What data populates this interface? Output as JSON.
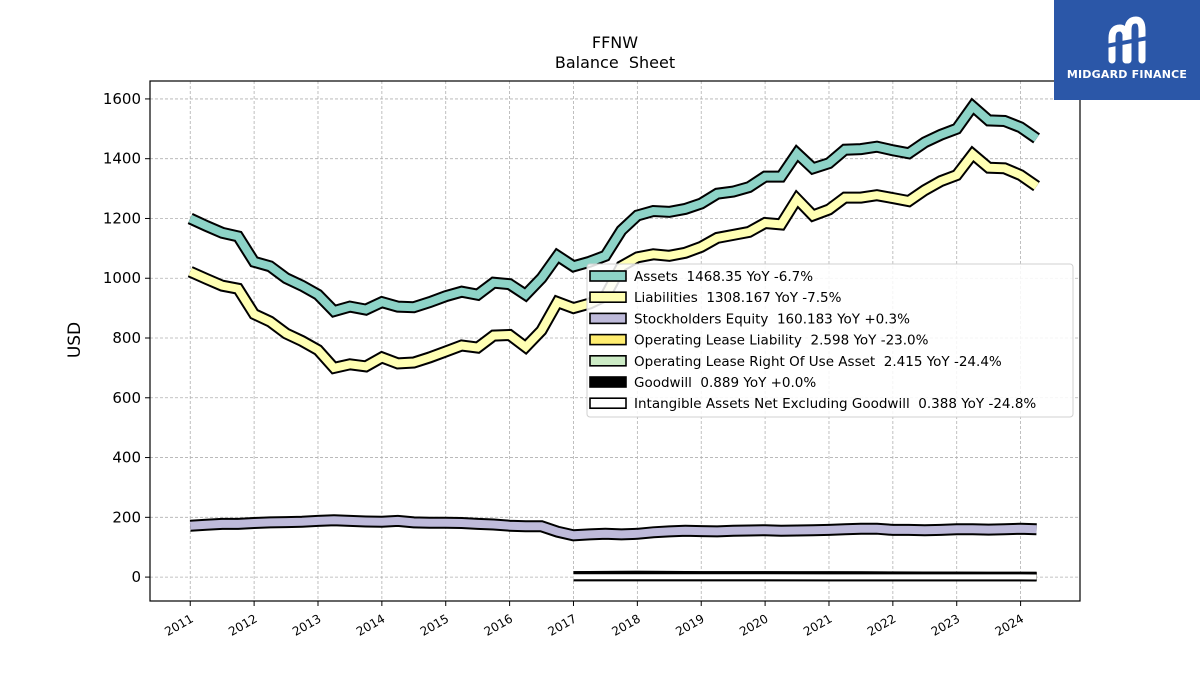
{
  "chart_data": {
    "type": "line",
    "title": "FFNW",
    "subtitle": "Balance  Sheet",
    "xlabel": "",
    "ylabel": "USD",
    "xlim": [
      2010.37,
      2024.93
    ],
    "ylim": [
      -80,
      1660
    ],
    "x_ticks": [
      "2011",
      "2012",
      "2013",
      "2014",
      "2015",
      "2016",
      "2017",
      "2018",
      "2019",
      "2020",
      "2021",
      "2022",
      "2023",
      "2024"
    ],
    "y_ticks": [
      0,
      200,
      400,
      600,
      800,
      1000,
      1200,
      1400,
      1600
    ],
    "grid": true,
    "legend_position": "center-right",
    "series": [
      {
        "name": "Assets",
        "legend": "Assets  1468.35 YoY -6.7%",
        "color": "#8dd3c7",
        "x": [
          2011.0,
          2011.25,
          2011.5,
          2011.75,
          2012.0,
          2012.25,
          2012.5,
          2012.75,
          2013.0,
          2013.25,
          2013.5,
          2013.75,
          2014.0,
          2014.25,
          2014.5,
          2014.75,
          2015.0,
          2015.25,
          2015.5,
          2015.75,
          2016.0,
          2016.25,
          2016.5,
          2016.75,
          2017.0,
          2017.25,
          2017.5,
          2017.75,
          2018.0,
          2018.25,
          2018.5,
          2018.75,
          2019.0,
          2019.25,
          2019.5,
          2019.75,
          2020.0,
          2020.25,
          2020.5,
          2020.75,
          2021.0,
          2021.25,
          2021.5,
          2021.75,
          2022.0,
          2022.25,
          2022.5,
          2022.75,
          2023.0,
          2023.25,
          2023.5,
          2023.75,
          2024.0,
          2024.25
        ],
        "values": [
          1200,
          1175,
          1152,
          1140,
          1055,
          1040,
          1000,
          975,
          945,
          890,
          905,
          895,
          920,
          905,
          903,
          920,
          940,
          955,
          945,
          985,
          980,
          945,
          1000,
          1075,
          1040,
          1055,
          1075,
          1160,
          1210,
          1225,
          1222,
          1232,
          1250,
          1283,
          1290,
          1305,
          1340,
          1340,
          1418,
          1368,
          1385,
          1430,
          1432,
          1440,
          1428,
          1418,
          1455,
          1480,
          1500,
          1575,
          1528,
          1526,
          1505,
          1468
        ]
      },
      {
        "name": "Liabilities",
        "legend": "Liabilities  1308.167 YoY -7.5%",
        "color": "#ffffb3",
        "x": [
          2011.0,
          2011.25,
          2011.5,
          2011.75,
          2012.0,
          2012.25,
          2012.5,
          2012.75,
          2013.0,
          2013.25,
          2013.5,
          2013.75,
          2014.0,
          2014.25,
          2014.5,
          2014.75,
          2015.0,
          2015.25,
          2015.5,
          2015.75,
          2016.0,
          2016.25,
          2016.5,
          2016.75,
          2017.0,
          2017.25,
          2017.5,
          2017.75,
          2018.0,
          2018.25,
          2018.5,
          2018.75,
          2019.0,
          2019.25,
          2019.5,
          2019.75,
          2020.0,
          2020.25,
          2020.5,
          2020.75,
          2021.0,
          2021.25,
          2021.5,
          2021.75,
          2022.0,
          2022.25,
          2022.5,
          2022.75,
          2023.0,
          2023.25,
          2023.5,
          2023.75,
          2024.0,
          2024.25
        ],
        "values": [
          1022,
          998,
          975,
          965,
          880,
          855,
          815,
          790,
          760,
          700,
          712,
          705,
          735,
          715,
          718,
          735,
          755,
          775,
          768,
          808,
          810,
          770,
          825,
          920,
          900,
          915,
          940,
          1040,
          1070,
          1080,
          1075,
          1085,
          1105,
          1135,
          1145,
          1155,
          1185,
          1180,
          1265,
          1210,
          1230,
          1270,
          1270,
          1278,
          1268,
          1258,
          1295,
          1325,
          1345,
          1415,
          1370,
          1368,
          1345,
          1308
        ]
      },
      {
        "name": "Stockholders Equity",
        "legend": "Stockholders Equity  160.183 YoY +0.3%",
        "color": "#bebada",
        "x": [
          2011.0,
          2011.25,
          2011.5,
          2011.75,
          2012.0,
          2012.25,
          2012.5,
          2012.75,
          2013.0,
          2013.25,
          2013.5,
          2013.75,
          2014.0,
          2014.25,
          2014.5,
          2014.75,
          2015.0,
          2015.25,
          2015.5,
          2015.75,
          2016.0,
          2016.25,
          2016.5,
          2016.75,
          2017.0,
          2017.25,
          2017.5,
          2017.75,
          2018.0,
          2018.25,
          2018.5,
          2018.75,
          2019.0,
          2019.25,
          2019.5,
          2019.75,
          2020.0,
          2020.25,
          2020.5,
          2020.75,
          2021.0,
          2021.25,
          2021.5,
          2021.75,
          2022.0,
          2022.25,
          2022.5,
          2022.75,
          2023.0,
          2023.25,
          2023.5,
          2023.75,
          2024.0,
          2024.25
        ],
        "values": [
          172,
          175,
          178,
          178,
          181,
          183,
          184,
          185,
          188,
          190,
          188,
          186,
          185,
          188,
          183,
          182,
          182,
          181,
          178,
          176,
          172,
          170,
          170,
          152,
          140,
          143,
          145,
          143,
          145,
          150,
          153,
          155,
          154,
          153,
          155,
          156,
          157,
          155,
          156,
          157,
          158,
          160,
          162,
          162,
          158,
          158,
          157,
          158,
          160,
          160,
          159,
          160,
          162,
          160
        ]
      },
      {
        "name": "Operating Lease Liability",
        "legend": "Operating Lease Liability  2.598 YoY -23.0%",
        "color": "#ffed6f",
        "x": [
          2017.0,
          2017.5,
          2018.0,
          2018.5,
          2019.0,
          2019.5,
          2020.0,
          2020.5,
          2021.0,
          2021.5,
          2022.0,
          2022.5,
          2023.0,
          2023.5,
          2024.0,
          2024.25
        ],
        "values": [
          5,
          5.5,
          6,
          5.5,
          5,
          5,
          5,
          4.8,
          4.5,
          4.2,
          4,
          3.7,
          3.4,
          3.1,
          2.8,
          2.6
        ]
      },
      {
        "name": "Operating Lease Right Of Use Asset",
        "legend": "Operating Lease Right Of Use Asset  2.415 YoY -24.4%",
        "color": "#ccebc5",
        "x": [
          2017.0,
          2017.5,
          2018.0,
          2018.5,
          2019.0,
          2019.5,
          2020.0,
          2020.5,
          2021.0,
          2021.5,
          2022.0,
          2022.5,
          2023.0,
          2023.5,
          2024.0,
          2024.25
        ],
        "values": [
          4.8,
          5.2,
          5.6,
          5.2,
          4.8,
          4.8,
          4.7,
          4.5,
          4.2,
          3.9,
          3.7,
          3.4,
          3.2,
          2.9,
          2.6,
          2.4
        ]
      },
      {
        "name": "Goodwill",
        "legend": "Goodwill  0.889 YoY +0.0%",
        "color": "#000000",
        "x": [
          2017.0,
          2024.25
        ],
        "values": [
          0.889,
          0.889
        ]
      },
      {
        "name": "Intangible Assets Net Excluding Goodwill",
        "legend": "Intangible Assets Net Excluding Goodwill  0.388 YoY -24.8%",
        "color": "#ffffff",
        "x": [
          2017.0,
          2018.0,
          2019.0,
          2020.0,
          2021.0,
          2022.0,
          2023.0,
          2024.0,
          2024.25
        ],
        "values": [
          1.2,
          1.1,
          1.0,
          0.9,
          0.8,
          0.7,
          0.6,
          0.5,
          0.39
        ]
      }
    ]
  },
  "logo": {
    "text": "MIDGARD FINANCE",
    "color": "#2b57a8"
  }
}
